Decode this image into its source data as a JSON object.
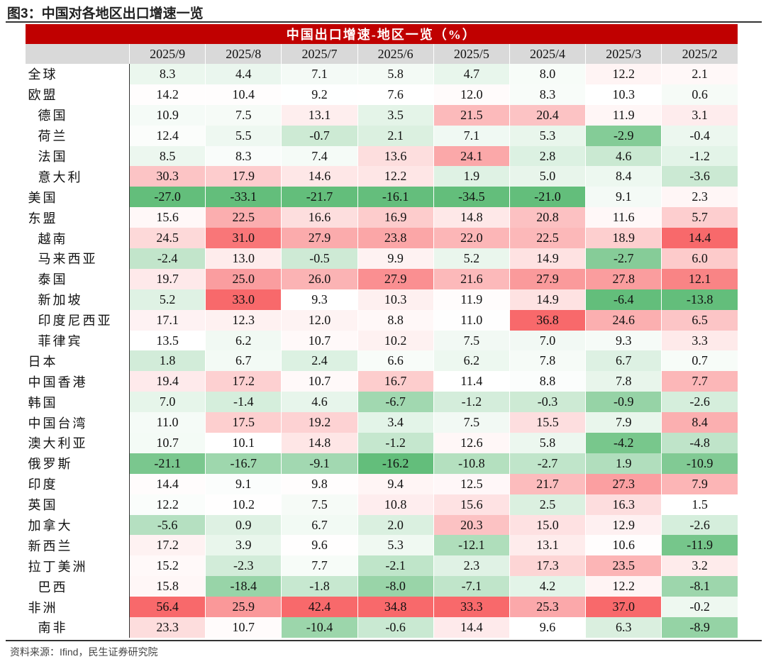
{
  "header": {
    "title": "图3：中国对各地区出口增速一览"
  },
  "table": {
    "title": "中国出口增速-地区一览（%）",
    "columns": [
      "2025/9",
      "2025/8",
      "2025/7",
      "2025/6",
      "2025/5",
      "2025/4",
      "2025/3",
      "2025/2"
    ],
    "rows": [
      {
        "label": "全球",
        "cells": [
          "8.3",
          "4.4",
          "7.1",
          "5.8",
          "4.7",
          "8.0",
          "12.2",
          "2.1"
        ]
      },
      {
        "label": "欧盟",
        "cells": [
          "14.2",
          "10.4",
          "9.2",
          "7.6",
          "12.0",
          "8.3",
          "10.3",
          "0.6"
        ]
      },
      {
        "label": "德国",
        "cells": [
          "10.9",
          "7.5",
          "13.1",
          "3.5",
          "21.5",
          "20.4",
          "11.9",
          "3.1"
        ]
      },
      {
        "label": "荷兰",
        "cells": [
          "12.4",
          "5.5",
          "-0.7",
          "2.1",
          "7.1",
          "5.3",
          "-2.9",
          "-0.4"
        ]
      },
      {
        "label": "法国",
        "cells": [
          "8.5",
          "8.3",
          "7.4",
          "13.6",
          "24.1",
          "2.8",
          "4.6",
          "-1.2"
        ]
      },
      {
        "label": "意大利",
        "cells": [
          "30.3",
          "17.9",
          "14.6",
          "12.2",
          "1.9",
          "5.0",
          "8.4",
          "-3.6"
        ]
      },
      {
        "label": "美国",
        "cells": [
          "-27.0",
          "-33.1",
          "-21.7",
          "-16.1",
          "-34.5",
          "-21.0",
          "9.1",
          "2.3"
        ]
      },
      {
        "label": "东盟",
        "cells": [
          "15.6",
          "22.5",
          "16.6",
          "16.9",
          "14.8",
          "20.8",
          "11.6",
          "5.7"
        ]
      },
      {
        "label": "越南",
        "cells": [
          "24.5",
          "31.0",
          "27.9",
          "23.8",
          "22.0",
          "22.5",
          "18.9",
          "14.4"
        ]
      },
      {
        "label": "马来西亚",
        "cells": [
          "-2.4",
          "13.0",
          "-0.5",
          "9.9",
          "5.2",
          "14.9",
          "-2.7",
          "6.0"
        ]
      },
      {
        "label": "泰国",
        "cells": [
          "19.7",
          "25.0",
          "26.0",
          "27.9",
          "21.6",
          "27.9",
          "27.8",
          "12.1"
        ]
      },
      {
        "label": "新加坡",
        "cells": [
          "5.2",
          "33.0",
          "9.3",
          "10.3",
          "11.9",
          "14.9",
          "-6.4",
          "-13.8"
        ]
      },
      {
        "label": "印度尼西亚",
        "cells": [
          "17.1",
          "12.3",
          "12.0",
          "8.8",
          "11.0",
          "36.8",
          "24.6",
          "6.5"
        ]
      },
      {
        "label": "菲律宾",
        "cells": [
          "13.5",
          "6.2",
          "10.7",
          "10.2",
          "7.5",
          "7.0",
          "9.3",
          "3.3"
        ]
      },
      {
        "label": "日本",
        "cells": [
          "1.8",
          "6.7",
          "2.4",
          "6.6",
          "6.2",
          "7.8",
          "6.7",
          "0.7"
        ]
      },
      {
        "label": "中国香港",
        "cells": [
          "19.4",
          "17.2",
          "10.7",
          "16.7",
          "11.4",
          "8.8",
          "7.8",
          "7.7"
        ]
      },
      {
        "label": "韩国",
        "cells": [
          "7.0",
          "-1.4",
          "4.6",
          "-6.7",
          "-1.2",
          "-0.3",
          "-0.9",
          "-2.6"
        ]
      },
      {
        "label": "中国台湾",
        "cells": [
          "11.0",
          "17.5",
          "19.2",
          "3.4",
          "7.5",
          "15.5",
          "7.9",
          "8.4"
        ]
      },
      {
        "label": "澳大利亚",
        "cells": [
          "10.7",
          "10.1",
          "14.8",
          "-1.2",
          "12.6",
          "5.8",
          "-4.2",
          "-4.8"
        ]
      },
      {
        "label": "俄罗斯",
        "cells": [
          "-21.1",
          "-16.7",
          "-9.1",
          "-16.2",
          "-10.8",
          "-2.7",
          "1.9",
          "-10.9"
        ]
      },
      {
        "label": "印度",
        "cells": [
          "14.4",
          "9.1",
          "9.8",
          "9.4",
          "12.5",
          "21.7",
          "27.3",
          "7.9"
        ]
      },
      {
        "label": "英国",
        "cells": [
          "12.2",
          "10.2",
          "7.5",
          "10.8",
          "15.6",
          "2.5",
          "16.3",
          "1.5"
        ]
      },
      {
        "label": "加拿大",
        "cells": [
          "-5.6",
          "0.9",
          "6.7",
          "2.0",
          "20.3",
          "15.0",
          "12.9",
          "-2.6"
        ]
      },
      {
        "label": "新西兰",
        "cells": [
          "17.2",
          "3.9",
          "9.6",
          "5.3",
          "-12.1",
          "13.1",
          "10.6",
          "-11.9"
        ]
      },
      {
        "label": "拉丁美洲",
        "cells": [
          "15.2",
          "-2.3",
          "7.7",
          "-2.1",
          "2.3",
          "17.3",
          "23.5",
          "3.2"
        ]
      },
      {
        "label": "巴西",
        "cells": [
          "15.8",
          "-18.4",
          "-1.8",
          "-8.0",
          "-7.1",
          "4.2",
          "12.2",
          "-8.1"
        ]
      },
      {
        "label": "非洲",
        "cells": [
          "56.4",
          "25.9",
          "42.4",
          "34.8",
          "33.3",
          "25.3",
          "37.0",
          "-0.2"
        ]
      },
      {
        "label": "南非",
        "cells": [
          "23.3",
          "10.7",
          "-10.4",
          "-0.6",
          "14.4",
          "9.6",
          "6.3",
          "-8.9"
        ]
      }
    ]
  },
  "footer": {
    "source": "资料来源：Ifind，民生证券研究院"
  }
}
